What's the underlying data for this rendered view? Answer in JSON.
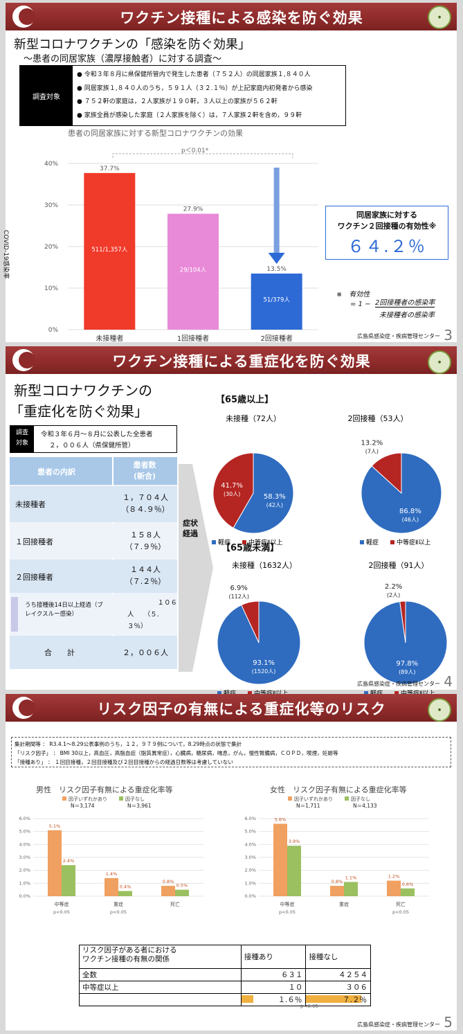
{
  "slide3": {
    "banner_title": "ワクチン接種による感染を防ぐ効果",
    "heading": "新型コロナワクチンの「感染を防ぐ効果」",
    "subheading": "～患者の同居家族（濃厚接触者）に対する調査～",
    "target_label": "調査対象",
    "bullets": [
      "令和３年８月に県保健所管内で発生した患者（７５２人）の同居家族１,８４０人",
      "同居家族１,８４０人のうち，５９１人（３２.１％）が上記家庭内初発者から感染",
      "７５２軒の家庭は，２人家族が１９０軒，３人以上の家族が５６２軒",
      "家族全員が感染した家庭（２人家族を除く）は，７人家族２軒を含め，９９軒"
    ],
    "chart_title": "患者の同居家族に対する新型コロナワクチンの効果",
    "p_value": "p＜0.01*",
    "ylabel": "COVID-19感染率",
    "efficacy_title_1": "同居家族に対する",
    "efficacy_title_2": "ワクチン２回接種の有効性※",
    "efficacy_value": "６４.２％",
    "formula_note": "※　有効性",
    "formula_lhs": "= 1 −",
    "formula_num": "2回接種者の感染率",
    "formula_den": "未接種者の感染率",
    "footer": "広島県感染症・疾病管理センター",
    "page": "3"
  },
  "chart_data": [
    {
      "type": "bar",
      "title": "患者の同居家族に対する新型コロナワクチンの効果",
      "ylabel": "COVID-19感染率",
      "categories": [
        "未接種者",
        "1回接種者",
        "2回接種者"
      ],
      "values": [
        37.7,
        27.9,
        13.5
      ],
      "value_labels": [
        "37.7%",
        "27.9%",
        "13.5%"
      ],
      "inner_labels": [
        "511/1,357人",
        "29/104人",
        "51/379人"
      ],
      "ylim": [
        0,
        40
      ],
      "yticks": [
        "0%",
        "10%",
        "20%",
        "30%",
        "40%"
      ],
      "colors": [
        "#f03a2a",
        "#e88ad8",
        "#2d6ad6"
      ]
    },
    {
      "type": "pie",
      "title": "未接種（72人）",
      "group": "【65歳以上】",
      "slices": [
        {
          "name": "軽症",
          "value": 58.3,
          "label": "58.3%",
          "count": "(42人)"
        },
        {
          "name": "中等症Ⅱ以上",
          "value": 41.7,
          "label": "41.7%",
          "count": "(30人)"
        }
      ]
    },
    {
      "type": "pie",
      "title": "2回接種（53人）",
      "group": "【65歳以上】",
      "slices": [
        {
          "name": "軽症",
          "value": 86.8,
          "label": "86.8%",
          "count": "(46人)"
        },
        {
          "name": "中等症Ⅱ以上",
          "value": 13.2,
          "label": "13.2%",
          "count": "(7人)"
        }
      ]
    },
    {
      "type": "pie",
      "title": "未接種（1632人）",
      "group": "【65歳未満】",
      "slices": [
        {
          "name": "軽症",
          "value": 93.1,
          "label": "93.1%",
          "count": "(1520人)"
        },
        {
          "name": "中等症Ⅱ以上",
          "value": 6.9,
          "label": "6.9%",
          "count": "(112人)"
        }
      ]
    },
    {
      "type": "pie",
      "title": "2回接種（91人）",
      "group": "【65歳未満】",
      "slices": [
        {
          "name": "軽症",
          "value": 97.8,
          "label": "97.8%",
          "count": "(89人)"
        },
        {
          "name": "中等症Ⅱ以上",
          "value": 2.2,
          "label": "2.2%",
          "count": "(2人)"
        }
      ]
    },
    {
      "type": "bar",
      "title": "男性　リスク因子有無による重症化率等",
      "categories": [
        "中等症",
        "重症",
        "死亡"
      ],
      "series": [
        {
          "name": "因子いずれかあり",
          "n": "N＝3,174",
          "values": [
            5.1,
            1.4,
            0.8
          ],
          "labels": [
            "5.1%",
            "1.4%",
            "0.8%"
          ]
        },
        {
          "name": "因子なし",
          "n": "N＝3,961",
          "values": [
            2.4,
            0.4,
            0.5
          ],
          "labels": [
            "2.4%",
            "0.4%",
            "0.5%"
          ]
        }
      ],
      "ylim": [
        0,
        6
      ],
      "yticks": [
        "0.0%",
        "1.0%",
        "2.0%",
        "3.0%",
        "4.0%",
        "5.0%",
        "6.0%"
      ],
      "pvals": [
        "p<0.05",
        "p<0.05",
        ""
      ]
    },
    {
      "type": "bar",
      "title": "女性　リスク因子有無による重症化率等",
      "categories": [
        "中等症",
        "重症",
        "死亡"
      ],
      "series": [
        {
          "name": "因子いずれかあり",
          "n": "N＝1,711",
          "values": [
            5.6,
            0.8,
            1.2
          ],
          "labels": [
            "5.6%",
            "0.8%",
            "1.2%"
          ]
        },
        {
          "name": "因子なし",
          "n": "N＝4,133",
          "values": [
            3.9,
            1.1,
            0.6
          ],
          "labels": [
            "3.9%",
            "1.1%",
            "0.6%"
          ]
        }
      ],
      "ylim": [
        0,
        6
      ],
      "yticks": [
        "0.0%",
        "1.0%",
        "2.0%",
        "3.0%",
        "4.0%",
        "5.0%",
        "6.0%"
      ],
      "pvals": [
        "p<0.05",
        "",
        "p<0.05"
      ]
    }
  ],
  "slide4": {
    "banner_title": "ワクチン接種による重症化を防ぐ効果",
    "heading_1": "新型コロナワクチンの",
    "heading_2": "「重症化を防ぐ効果」",
    "target_label_1": "調査",
    "target_label_2": "対象",
    "target_line_1": "令和３年６月～８月に公表した全患者",
    "target_line_2": "２，００６人（県保健所管）",
    "table_head_1": "患者の内訳",
    "table_head_2a": "患者数",
    "table_head_2b": "(新合)",
    "rows": [
      {
        "label": "未接種者",
        "v1": "１，７０４人",
        "v2": "（８４.９％）"
      },
      {
        "label": "１回接種者",
        "v1": "１５８人",
        "v2": "（７.９％）"
      },
      {
        "label": "２回接種者",
        "v1": "１４４人",
        "v2": "（７.２％）"
      }
    ],
    "sub_row_label": "うち接種後14日以上経過（ブレイクスルー感染）",
    "sub_row_v1": "１０６",
    "sub_row_v2": "人　　（５.",
    "sub_row_v3": "３％）",
    "total_label": "合　　計",
    "total_value": "２，００６人",
    "arrow_label_1": "症状",
    "arrow_label_2": "経過",
    "group_over65": "【65歳以上】",
    "group_under65": "【65歳未満】",
    "legend_mild": "軽症",
    "legend_severe": "中等症Ⅱ以上",
    "footer": "広島県感染症・疾病管理センター",
    "page": "4"
  },
  "slide5": {
    "banner_title": "リスク因子の有無による重症化等のリスク",
    "note_1": "集計期間等 ： R3.4.1〜8.29公表事例のうち，１２，９７９例について，8.29時点の状態で集計",
    "note_2": "「リスク因子」 ： BMI 30以上，高血圧，高脂血症（脂質異常症），心臓病，糖尿病，喘息，がん，慢性腎臓病，ＣＯＰＤ，喫煙，妊娠等",
    "note_3": "「接種あり」 ： １回目接種，２回目接種及び２回目接種からの経過日数等は考慮していない",
    "table_head_1a": "リスク因子がある者における",
    "table_head_1b": "ワクチン接種の有無の関係",
    "table_head_2": "接種あり",
    "table_head_3": "接種なし",
    "row_total_label": "全数",
    "row_total_v1": "６３１",
    "row_total_v2": "４２５４",
    "row_mod_label": "中等症以上",
    "row_mod_v1": "１０",
    "row_mod_v2": "３０６",
    "rate_v1": "１.６％",
    "rate_v2": "７.２％",
    "rate_frac_1": 0.016,
    "rate_frac_2": 0.072,
    "p_value": "p<0.05",
    "footer": "広島県感染症・疾病管理センター",
    "page": "5"
  },
  "colors": {
    "banner": "#8e2a2a",
    "bar_red": "#f03a2a",
    "bar_pink": "#e88ad8",
    "bar_blue": "#2d6ad6",
    "pie_blue": "#2f6cc0",
    "pie_red": "#b52522",
    "orange": "#f0a060",
    "green": "#9ac060",
    "table_blue": "#a9c8e8"
  }
}
